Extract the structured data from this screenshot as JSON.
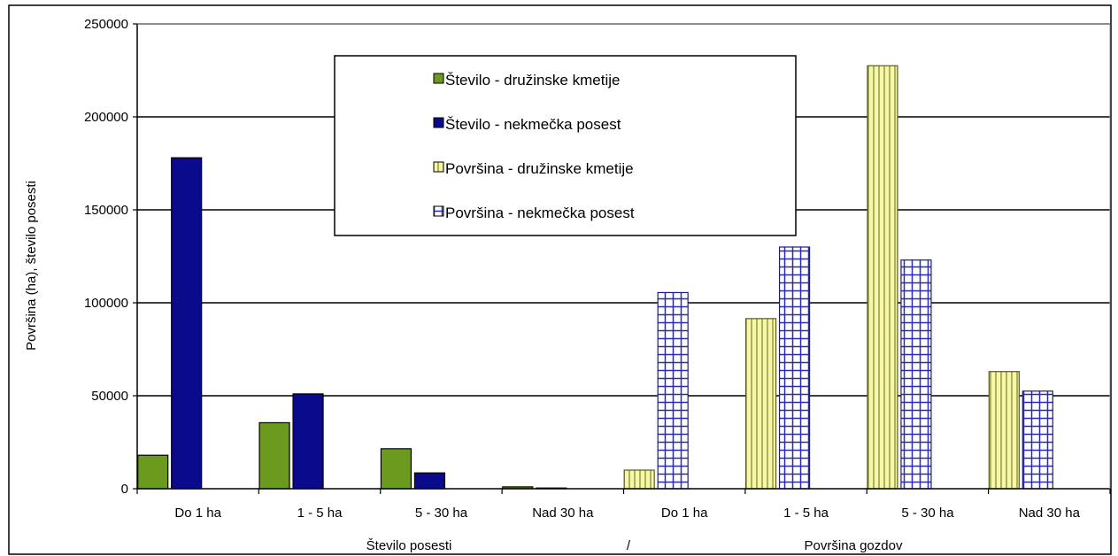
{
  "chart_data": {
    "type": "bar",
    "categories": [
      "Do 1 ha",
      "1 - 5 ha",
      "5 - 30 ha",
      "Nad 30 ha",
      "Do 1 ha",
      "1 - 5 ha",
      "5 - 30 ha",
      "Nad 30 ha"
    ],
    "series": [
      {
        "name": "Število - družinske kmetije",
        "color": "#6b9a1f",
        "pattern": "solid",
        "values": [
          18000,
          35500,
          21500,
          1000,
          null,
          null,
          null,
          null
        ]
      },
      {
        "name": "Število - nekmečka posest",
        "color": "#0a0a8c",
        "pattern": "solid",
        "values": [
          178000,
          51000,
          8500,
          300,
          null,
          null,
          null,
          null
        ]
      },
      {
        "name": "Površina - družinske kmetije",
        "color": "#f4f8a8",
        "pattern": "vertical-stripes",
        "values": [
          null,
          null,
          null,
          null,
          10000,
          91500,
          227500,
          63000
        ]
      },
      {
        "name": "Površina - nekmečka posest",
        "color": "#ffffff",
        "pattern": "blue-grid",
        "values": [
          null,
          null,
          null,
          null,
          105500,
          130000,
          123000,
          52500
        ]
      }
    ],
    "yticks": [
      "0",
      "50000",
      "100000",
      "150000",
      "200000",
      "250000"
    ],
    "ylim": [
      0,
      250000
    ],
    "ylabel": "Površina (ha), število posesti",
    "xlabel_left": "Število posesti",
    "xlabel_sep": "/",
    "xlabel_right": "Površina gozdov",
    "grid": true,
    "legend_position": "top-center"
  }
}
